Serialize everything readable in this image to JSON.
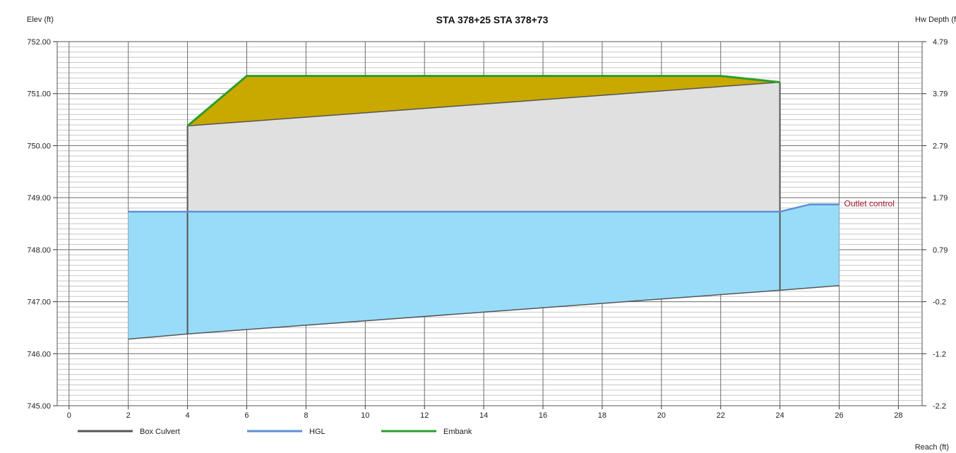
{
  "chart_data": {
    "type": "area",
    "title": "STA 378+25 STA 378+73",
    "ylabel": "Elev (ft)",
    "y2label": "Hw Depth (ft",
    "xlabel": "Reach (ft)",
    "xlim": [
      -0.4,
      28.8
    ],
    "ylim": [
      745.0,
      752.0
    ],
    "xticks": [
      0,
      2,
      4,
      6,
      8,
      10,
      12,
      14,
      16,
      18,
      20,
      22,
      24,
      26,
      28
    ],
    "yticks": [
      "745.00",
      "746.00",
      "747.00",
      "748.00",
      "749.00",
      "750.00",
      "751.00",
      "752.00"
    ],
    "y2ticks": [
      "-2.2",
      "-1.2",
      "-0.2",
      "0.79",
      "1.79",
      "2.79",
      "3.79",
      "4.79"
    ],
    "grid": true,
    "legend_position": "bottom-left",
    "annotation": "Outlet control",
    "colors": {
      "box_culvert": "#555555",
      "hgl": "#5c8fd6",
      "embank": "#2a9e2a",
      "water_fill": "#99dcf9",
      "culvert_fill": "#e0e0e0",
      "embank_fill": "#c9a800"
    },
    "series": [
      {
        "name": "Box Culvert",
        "x": [
          2,
          4,
          24,
          26
        ],
        "y": [
          746.28,
          746.38,
          747.22,
          747.31
        ]
      },
      {
        "name": "HGL",
        "x": [
          2,
          24,
          25,
          26
        ],
        "y": [
          748.73,
          748.73,
          748.87,
          748.87
        ]
      },
      {
        "name": "Embank",
        "x": [
          4,
          6,
          22,
          24
        ],
        "y": [
          750.38,
          751.34,
          751.34,
          751.22
        ]
      }
    ],
    "culvert": {
      "inlet_x": 4,
      "outlet_x": 24,
      "invert": [
        746.38,
        747.22
      ],
      "crown": [
        750.38,
        751.22
      ]
    }
  }
}
